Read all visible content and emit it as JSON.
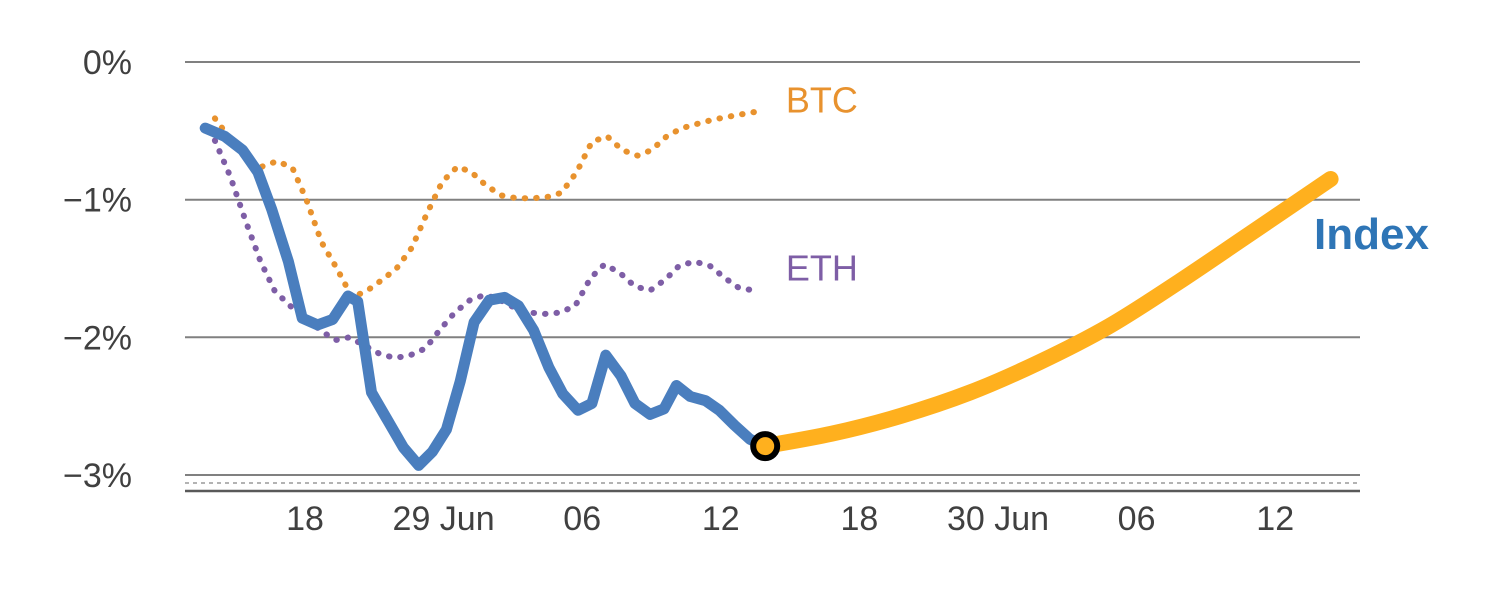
{
  "chart_data": {
    "type": "line",
    "title": "",
    "xlabel": "",
    "ylabel": "",
    "ylim": [
      -3,
      0
    ],
    "y_unit": "%",
    "x_units": "tick index (0..7 correspond to the x-axis date labels)",
    "grid": "horizontal",
    "x_ticks": [
      {
        "pos": 0,
        "label": "18"
      },
      {
        "pos": 1,
        "label": "29 Jun"
      },
      {
        "pos": 2,
        "label": "06"
      },
      {
        "pos": 3,
        "label": "12"
      },
      {
        "pos": 4,
        "label": "18"
      },
      {
        "pos": 5,
        "label": "30 Jun"
      },
      {
        "pos": 6,
        "label": "06"
      },
      {
        "pos": 7,
        "label": "12"
      }
    ],
    "y_ticks": [
      {
        "value": 0,
        "label": "0%"
      },
      {
        "value": -1,
        "label": "−1%"
      },
      {
        "value": -2,
        "label": "−2%"
      },
      {
        "value": -3,
        "label": "−3%"
      }
    ],
    "colors": {
      "grid": "#808080",
      "axis": "#595959",
      "minor_dash": "#b3b3b3",
      "tick_label": "#404040"
    },
    "series": [
      {
        "name": "btc",
        "label": "BTC",
        "color": "#E8922E",
        "style": "dotted",
        "width": 6,
        "label_anchor": [
          3.47,
          -0.28
        ],
        "points": [
          [
            -0.65,
            -0.41
          ],
          [
            -0.53,
            -0.57
          ],
          [
            -0.42,
            -0.71
          ],
          [
            -0.31,
            -0.76
          ],
          [
            -0.2,
            -0.72
          ],
          [
            -0.09,
            -0.77
          ],
          [
            0.01,
            -1.0
          ],
          [
            0.12,
            -1.31
          ],
          [
            0.23,
            -1.5
          ],
          [
            0.34,
            -1.71
          ],
          [
            0.45,
            -1.66
          ],
          [
            0.56,
            -1.58
          ],
          [
            0.66,
            -1.5
          ],
          [
            0.77,
            -1.35
          ],
          [
            0.88,
            -1.1
          ],
          [
            0.99,
            -0.87
          ],
          [
            1.1,
            -0.76
          ],
          [
            1.2,
            -0.8
          ],
          [
            1.31,
            -0.9
          ],
          [
            1.42,
            -0.97
          ],
          [
            1.53,
            -0.99
          ],
          [
            1.64,
            -0.99
          ],
          [
            1.75,
            -0.98
          ],
          [
            1.85,
            -0.95
          ],
          [
            1.96,
            -0.8
          ],
          [
            2.07,
            -0.58
          ],
          [
            2.18,
            -0.54
          ],
          [
            2.29,
            -0.64
          ],
          [
            2.4,
            -0.68
          ],
          [
            2.5,
            -0.64
          ],
          [
            2.61,
            -0.54
          ],
          [
            2.72,
            -0.48
          ],
          [
            2.83,
            -0.45
          ],
          [
            2.94,
            -0.42
          ],
          [
            3.04,
            -0.4
          ],
          [
            3.15,
            -0.38
          ],
          [
            3.26,
            -0.36
          ]
        ]
      },
      {
        "name": "eth",
        "label": "ETH",
        "color": "#7E5EA6",
        "style": "dotted",
        "width": 6,
        "label_anchor": [
          3.47,
          -1.5
        ],
        "points": [
          [
            -0.65,
            -0.57
          ],
          [
            -0.54,
            -0.83
          ],
          [
            -0.43,
            -1.15
          ],
          [
            -0.32,
            -1.45
          ],
          [
            -0.22,
            -1.66
          ],
          [
            -0.11,
            -1.77
          ],
          [
            0.0,
            -1.84
          ],
          [
            0.11,
            -1.95
          ],
          [
            0.22,
            -2.02
          ],
          [
            0.32,
            -2.0
          ],
          [
            0.43,
            -2.06
          ],
          [
            0.54,
            -2.12
          ],
          [
            0.65,
            -2.15
          ],
          [
            0.76,
            -2.13
          ],
          [
            0.87,
            -2.08
          ],
          [
            0.97,
            -1.95
          ],
          [
            1.08,
            -1.82
          ],
          [
            1.19,
            -1.73
          ],
          [
            1.3,
            -1.69
          ],
          [
            1.41,
            -1.73
          ],
          [
            1.52,
            -1.79
          ],
          [
            1.62,
            -1.82
          ],
          [
            1.73,
            -1.83
          ],
          [
            1.84,
            -1.82
          ],
          [
            1.95,
            -1.77
          ],
          [
            2.06,
            -1.57
          ],
          [
            2.16,
            -1.47
          ],
          [
            2.27,
            -1.53
          ],
          [
            2.38,
            -1.63
          ],
          [
            2.49,
            -1.66
          ],
          [
            2.6,
            -1.58
          ],
          [
            2.7,
            -1.48
          ],
          [
            2.81,
            -1.45
          ],
          [
            2.92,
            -1.48
          ],
          [
            3.03,
            -1.57
          ],
          [
            3.13,
            -1.64
          ],
          [
            3.24,
            -1.66
          ]
        ]
      },
      {
        "name": "index-history",
        "label": "",
        "color": "#4A7EBE",
        "style": "solid",
        "width": 11,
        "points": [
          [
            -0.72,
            -0.48
          ],
          [
            -0.58,
            -0.54
          ],
          [
            -0.45,
            -0.64
          ],
          [
            -0.34,
            -0.8
          ],
          [
            -0.24,
            -1.07
          ],
          [
            -0.12,
            -1.45
          ],
          [
            -0.02,
            -1.86
          ],
          [
            0.09,
            -1.91
          ],
          [
            0.2,
            -1.87
          ],
          [
            0.31,
            -1.7
          ],
          [
            0.38,
            -1.74
          ],
          [
            0.48,
            -2.4
          ],
          [
            0.6,
            -2.61
          ],
          [
            0.71,
            -2.8
          ],
          [
            0.82,
            -2.93
          ],
          [
            0.92,
            -2.83
          ],
          [
            1.02,
            -2.67
          ],
          [
            1.12,
            -2.32
          ],
          [
            1.22,
            -1.89
          ],
          [
            1.33,
            -1.73
          ],
          [
            1.44,
            -1.71
          ],
          [
            1.54,
            -1.77
          ],
          [
            1.65,
            -1.95
          ],
          [
            1.76,
            -2.22
          ],
          [
            1.86,
            -2.41
          ],
          [
            1.97,
            -2.53
          ],
          [
            2.07,
            -2.48
          ],
          [
            2.17,
            -2.13
          ],
          [
            2.28,
            -2.28
          ],
          [
            2.38,
            -2.48
          ],
          [
            2.49,
            -2.56
          ],
          [
            2.59,
            -2.52
          ],
          [
            2.68,
            -2.35
          ],
          [
            2.78,
            -2.43
          ],
          [
            2.89,
            -2.46
          ],
          [
            2.99,
            -2.53
          ],
          [
            3.1,
            -2.64
          ],
          [
            3.21,
            -2.74
          ],
          [
            3.32,
            -2.79
          ]
        ]
      },
      {
        "name": "index-forecast",
        "label": "Index",
        "color": "#FFB01E",
        "style": "solid",
        "smooth": true,
        "width": 16,
        "label_anchor": [
          7.28,
          -1.27
        ],
        "label_color": "#2E75B6",
        "label_bold": true,
        "points": [
          [
            3.32,
            -2.79
          ],
          [
            3.8,
            -2.7
          ],
          [
            4.3,
            -2.57
          ],
          [
            4.8,
            -2.4
          ],
          [
            5.3,
            -2.18
          ],
          [
            5.8,
            -1.92
          ],
          [
            6.3,
            -1.6
          ],
          [
            6.8,
            -1.26
          ],
          [
            7.4,
            -0.85
          ]
        ]
      }
    ],
    "marker": {
      "x": 3.32,
      "y": -2.79,
      "fill": "#FFB01E",
      "stroke": "#000000"
    }
  }
}
